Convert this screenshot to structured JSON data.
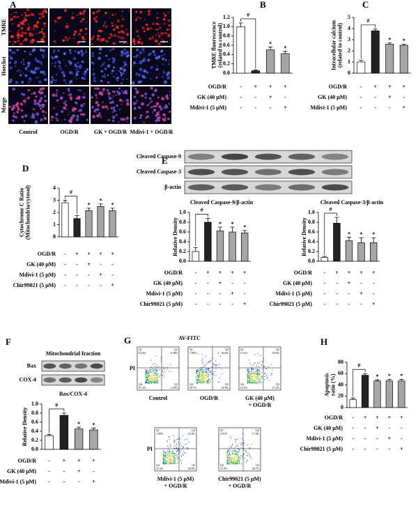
{
  "panel_a": {
    "letter": "A",
    "rows": [
      "TMRE",
      "Hoechst",
      "Merge"
    ],
    "columns": [
      "Control",
      "OGD/R",
      "GK + OGD/R",
      "Mdivi-1 + OGD/R"
    ]
  },
  "panel_e_blot": {
    "letter": "E",
    "bands": [
      "Cleaved  Caspase-9",
      "Cleaved  Caspase-3",
      "β-actin"
    ]
  },
  "panel_f_blot": {
    "letter": "F",
    "header": "Mitochondrial fraction",
    "bands": [
      "Bax",
      "COX-4"
    ]
  },
  "panel_g": {
    "letter": "G",
    "xlabel": "AV-FITC",
    "ylabel": "PI",
    "plots": [
      {
        "label": [
          "Control"
        ],
        "quadrants": [
          {
            "name": "Q1",
            "value": "0.23%"
          },
          {
            "name": "Q2",
            "value": "6.38%"
          },
          {
            "name": "Q3",
            "value": "2.20%"
          },
          {
            "name": "Q4",
            "value": "91.2%"
          }
        ]
      },
      {
        "label": [
          "OGD/R"
        ],
        "quadrants": [
          {
            "name": "Q1",
            "value": "1.90%"
          },
          {
            "name": "Q2",
            "value": "30.4%"
          },
          {
            "name": "Q3",
            "value": "30.9%"
          },
          {
            "name": "Q4",
            "value": "36.7%"
          }
        ]
      },
      {
        "label": [
          "GK (40 μM)",
          "+ OGD/R"
        ],
        "quadrants": [
          {
            "name": "Q1",
            "value": "2.11%"
          },
          {
            "name": "Q2",
            "value": "18.6%"
          },
          {
            "name": "Q3",
            "value": "27.2%"
          },
          {
            "name": "Q4",
            "value": "52.0%"
          }
        ]
      },
      {
        "label": [
          "Mdivi-1 (5 μM)",
          "+ OGD/R"
        ],
        "quadrants": [
          {
            "name": "Q1",
            "value": "1.80%"
          },
          {
            "name": "Q2",
            "value": "23.0%"
          },
          {
            "name": "Q3",
            "value": "20.8%"
          },
          {
            "name": "Q4",
            "value": "51.2%"
          }
        ]
      },
      {
        "label": [
          "Chir99021 (5 μM)",
          "+ OGD/R"
        ],
        "quadrants": [
          {
            "name": "Q1",
            "value": "2.01%"
          },
          {
            "name": "Q2",
            "value": "17.4%"
          },
          {
            "name": "Q3",
            "value": "28.7%"
          },
          {
            "name": "Q4",
            "value": "51.9%"
          }
        ]
      }
    ]
  },
  "chart_data": [
    {
      "type": "bar",
      "panel": "B",
      "ylabel": [
        "TMRE fluorescence",
        "(related to control)"
      ],
      "ylim": [
        0,
        1.2
      ],
      "yticks": [
        {
          "value": 0,
          "label": "0.0"
        },
        0.2,
        0.4,
        0.6,
        0.8,
        {
          "value": 1,
          "label": "1.0"
        },
        1.2
      ],
      "values": [
        1.0,
        0.05,
        0.5,
        0.42
      ],
      "errors": [
        0.08,
        0.02,
        0.06,
        0.05
      ],
      "colors": [
        "#ffffff",
        "#222222",
        "#a6a6a6",
        "#a6a6a6"
      ],
      "markers": [
        null,
        "#",
        "*",
        "*"
      ],
      "conditions": [
        {
          "name": "OGD/R",
          "marks": [
            "-",
            "+",
            "+",
            "+"
          ]
        },
        {
          "name": "GK (40 μM)",
          "marks": [
            "-",
            "-",
            "+",
            "-"
          ]
        },
        {
          "name": "Mdivi-1 (5 μM)",
          "marks": [
            "-",
            "-",
            "-",
            "+"
          ]
        }
      ]
    },
    {
      "type": "bar",
      "panel": "C",
      "ylabel": [
        "Intracellular calcium",
        "(related to control)"
      ],
      "ylim": [
        0,
        5
      ],
      "yticks": [
        0,
        1,
        2,
        3,
        4,
        5
      ],
      "values": [
        1.0,
        3.8,
        2.6,
        2.5
      ],
      "errors": [
        0.15,
        0.15,
        0.12,
        0.1
      ],
      "colors": [
        "#ffffff",
        "#222222",
        "#a6a6a6",
        "#a6a6a6"
      ],
      "markers": [
        null,
        "#",
        "*",
        "*"
      ],
      "conditions": [
        {
          "name": "OGD/R",
          "marks": [
            "-",
            "+",
            "+",
            "+"
          ]
        },
        {
          "name": "GK (40 μM)",
          "marks": [
            "-",
            "-",
            "+",
            "-"
          ]
        },
        {
          "name": "Mdivi-1 (5 μM)",
          "marks": [
            "-",
            "-",
            "-",
            "+"
          ]
        }
      ]
    },
    {
      "type": "bar",
      "panel": "D",
      "ylabel": [
        "Cytochrome C Ratio",
        "(Mitochondria/cytosol)"
      ],
      "ylim": [
        0,
        4
      ],
      "yticks": [
        0,
        1,
        2,
        3,
        4
      ],
      "values": [
        2.8,
        1.5,
        2.15,
        2.5,
        2.15
      ],
      "errors": [
        0.2,
        0.25,
        0.2,
        0.2,
        0.2
      ],
      "colors": [
        "#ffffff",
        "#222222",
        "#a6a6a6",
        "#a6a6a6",
        "#a6a6a6"
      ],
      "markers": [
        null,
        "#",
        "*",
        "*",
        "*"
      ],
      "conditions": [
        {
          "name": "OGD/R",
          "marks": [
            "-",
            "+",
            "+",
            "+",
            "+"
          ]
        },
        {
          "name": "GK (40 μM)",
          "marks": [
            "-",
            "-",
            "+",
            "-",
            "-"
          ]
        },
        {
          "name": "Mdivi-1 (5 μM)",
          "marks": [
            "-",
            "-",
            "-",
            "+",
            "-"
          ]
        },
        {
          "name": "Chir99021 (5 μM)",
          "marks": [
            "-",
            "-",
            "-",
            "-",
            "+"
          ]
        }
      ]
    },
    {
      "type": "bar",
      "title": "Cleaved  Caspase-9/β-actin",
      "ylabel": [
        "Relative Density"
      ],
      "ylim": [
        0,
        1
      ],
      "yticks": [
        {
          "value": 0,
          "label": "0.0"
        },
        0.2,
        0.4,
        0.6,
        0.8,
        {
          "value": 1,
          "label": "1.0"
        }
      ],
      "values": [
        0.2,
        0.8,
        0.62,
        0.6,
        0.58
      ],
      "errors": [
        0.08,
        0.08,
        0.08,
        0.1,
        0.05
      ],
      "colors": [
        "#ffffff",
        "#222222",
        "#a6a6a6",
        "#a6a6a6",
        "#a6a6a6"
      ],
      "markers": [
        null,
        "#",
        "*",
        "*",
        "*"
      ],
      "conditions": [
        {
          "name": "OGD/R",
          "marks": [
            "-",
            "+",
            "+",
            "+",
            "+"
          ]
        },
        {
          "name": "GK (40 μM)",
          "marks": [
            "-",
            "-",
            "+",
            "-",
            "-"
          ]
        },
        {
          "name": "Mdivi-1 (5 μM)",
          "marks": [
            "-",
            "-",
            "-",
            "+",
            "-"
          ]
        },
        {
          "name": "Chir99021 (5 μM)",
          "marks": [
            "-",
            "-",
            "-",
            "-",
            "+"
          ]
        }
      ]
    },
    {
      "type": "bar",
      "title": "Cleaved  Caspase-3/β-actin",
      "ylabel": [
        "Relative Density"
      ],
      "ylim": [
        0,
        1
      ],
      "yticks": [
        {
          "value": 0,
          "label": "0.0"
        },
        0.2,
        0.4,
        0.6,
        0.8,
        {
          "value": 1,
          "label": "1.0"
        }
      ],
      "values": [
        0.08,
        0.78,
        0.42,
        0.38,
        0.38
      ],
      "errors": [
        0.02,
        0.12,
        0.07,
        0.1,
        0.1
      ],
      "colors": [
        "#ffffff",
        "#222222",
        "#a6a6a6",
        "#a6a6a6",
        "#a6a6a6"
      ],
      "markers": [
        null,
        "#",
        "*",
        "*",
        "*"
      ],
      "conditions": [
        {
          "name": "OGD/R",
          "marks": [
            "-",
            "+",
            "+",
            "+",
            "+"
          ]
        },
        {
          "name": "GK (40 μM)",
          "marks": [
            "-",
            "-",
            "+",
            "-",
            "-"
          ]
        },
        {
          "name": "Mdivi-1 (5 μM)",
          "marks": [
            "-",
            "-",
            "-",
            "+",
            "-"
          ]
        },
        {
          "name": "Chir99021 (5 μM)",
          "marks": [
            "-",
            "-",
            "-",
            "-",
            "+"
          ]
        }
      ]
    },
    {
      "type": "bar",
      "title": "Bax/COX-4",
      "ylabel": [
        "Relative Density"
      ],
      "ylim": [
        0,
        1
      ],
      "yticks": [
        {
          "value": 0,
          "label": "0.0"
        },
        0.2,
        0.4,
        0.6,
        0.8,
        {
          "value": 1,
          "label": "1.0"
        }
      ],
      "values": [
        0.3,
        0.75,
        0.45,
        0.43
      ],
      "errors": [
        0.03,
        0.05,
        0.04,
        0.04
      ],
      "colors": [
        "#ffffff",
        "#222222",
        "#a6a6a6",
        "#a6a6a6"
      ],
      "markers": [
        null,
        "#",
        "*",
        "*"
      ],
      "conditions": [
        {
          "name": "OGD/R",
          "marks": [
            "-",
            "+",
            "+",
            "+"
          ]
        },
        {
          "name": "GK (40 μM)",
          "marks": [
            "-",
            "-",
            "+",
            "-"
          ]
        },
        {
          "name": "Mdivi-1 (5 μM)",
          "marks": [
            "-",
            "-",
            "-",
            "+"
          ]
        }
      ]
    },
    {
      "type": "bar",
      "panel": "H",
      "ylabel": [
        "Apoptosis",
        "ratio (%)"
      ],
      "ylim": [
        0,
        80
      ],
      "yticks": [
        0,
        20,
        40,
        60,
        80
      ],
      "values": [
        14,
        57,
        47,
        47,
        47
      ],
      "errors": [
        3,
        3,
        2,
        3,
        3
      ],
      "colors": [
        "#ffffff",
        "#222222",
        "#a6a6a6",
        "#a6a6a6",
        "#a6a6a6"
      ],
      "markers": [
        null,
        "#",
        "*",
        "*",
        "*"
      ],
      "conditions": [
        {
          "name": "OGD/R",
          "marks": [
            "-",
            "+",
            "+",
            "+",
            "+"
          ]
        },
        {
          "name": "GK (40 μM)",
          "marks": [
            "-",
            "-",
            "+",
            "-",
            "-"
          ]
        },
        {
          "name": "Mdivi-1 (5 μM)",
          "marks": [
            "-",
            "-",
            "-",
            "+",
            "-"
          ]
        },
        {
          "name": "Chir99021 (5 μM)",
          "marks": [
            "-",
            "-",
            "-",
            "-",
            "+"
          ]
        }
      ]
    }
  ]
}
